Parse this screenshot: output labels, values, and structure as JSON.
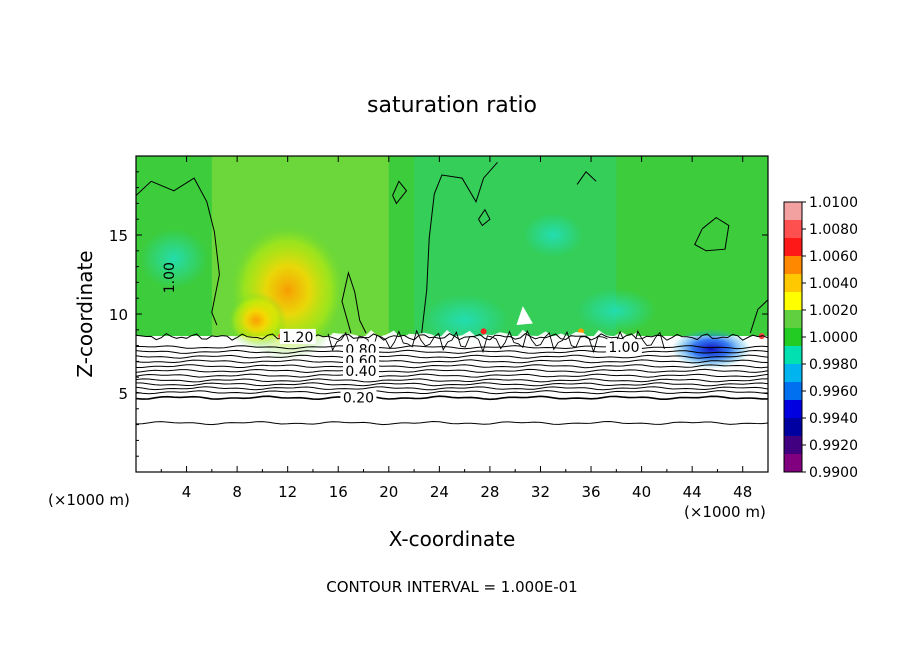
{
  "chart_data": {
    "type": "heatmap",
    "title": "saturation ratio",
    "xlabel": "X-coordinate",
    "ylabel": "Z-coordinate",
    "x_unit_label": "(×1000 m)",
    "y_unit_label": "(×1000 m)",
    "xlim": [
      0,
      50
    ],
    "ylim": [
      0,
      20
    ],
    "xticks": [
      4,
      8,
      12,
      16,
      20,
      24,
      28,
      32,
      36,
      40,
      44,
      48
    ],
    "yticks": [
      5,
      10,
      15
    ],
    "colorbar": {
      "labels": [
        "1.0100",
        "1.0080",
        "1.0060",
        "1.0040",
        "1.0020",
        "1.0000",
        "0.9980",
        "0.9960",
        "0.9940",
        "0.9920",
        "0.9900"
      ],
      "colors": [
        "#f3a0a0",
        "#ff5050",
        "#ff1818",
        "#ff8800",
        "#ffc800",
        "#ffff00",
        "#60d040",
        "#22cc22",
        "#00e0b0",
        "#00b4f0",
        "#0070f0",
        "#0000e0",
        "#0000a0",
        "#400080",
        "#800080"
      ]
    },
    "field": {
      "background_value": 0.9985,
      "boundary_layer_top_km": 8.6,
      "moist_core": {
        "x_km": 12,
        "z_km": 11.5,
        "value": 1.0035
      },
      "dry_patch": {
        "x_km": 45.5,
        "z_km": 7.8,
        "value": 0.9925
      }
    },
    "contour_interval": "CONTOUR INTERVAL = 1.000E-01",
    "contour_labels": [
      "1.00",
      "1.20",
      "0.80",
      "0.60",
      "0.40",
      "0.20",
      "1.00"
    ]
  }
}
